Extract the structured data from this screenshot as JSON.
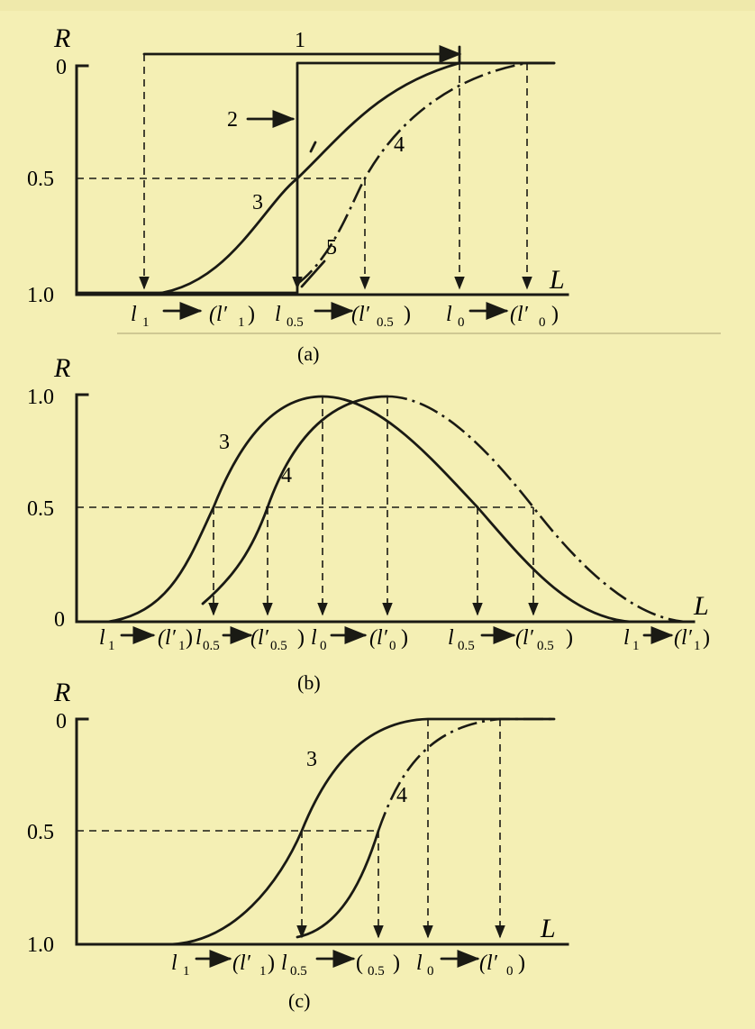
{
  "panels": [
    {
      "caption": "(a)",
      "y_axis_label": "R",
      "x_axis_label": "L",
      "y_ticks": [
        "0",
        "0.5",
        "1.0"
      ],
      "curve_numbers": [
        "1",
        "2",
        "3",
        "4",
        "5"
      ],
      "x_markers": [
        "l",
        "1",
        "(l",
        "1",
        ")",
        "l",
        "0.5",
        "(l",
        "0.5",
        ")",
        "l",
        "0",
        "(l",
        "0",
        ")"
      ]
    },
    {
      "caption": "(b)",
      "y_axis_label": "R",
      "x_axis_label": "L",
      "y_ticks": [
        "1.0",
        "0.5",
        "0"
      ],
      "curve_numbers": [
        "3",
        "4"
      ],
      "x_markers": [
        "l",
        "1",
        "(l",
        "1",
        ")",
        "l",
        "0.5",
        "(l",
        "0.5",
        ")",
        "l",
        "0",
        "(l",
        "0",
        ")",
        "l",
        "0.5",
        "(l",
        "0.5",
        ")",
        "l",
        "1",
        "(l",
        "1",
        ")"
      ]
    },
    {
      "caption": "(c)",
      "y_axis_label": "R",
      "x_axis_label": "L",
      "y_ticks": [
        "0",
        "0.5",
        "1.0"
      ],
      "curve_numbers": [
        "3",
        "4"
      ],
      "x_markers": [
        "l",
        "1",
        "(l",
        "1",
        ")",
        "l",
        "0.5",
        "(",
        "0.5",
        ")",
        "l",
        "0",
        "(l",
        "0",
        ")"
      ]
    }
  ],
  "colors": {
    "paper": "#f4efb4",
    "ink": "#1a1a14"
  }
}
